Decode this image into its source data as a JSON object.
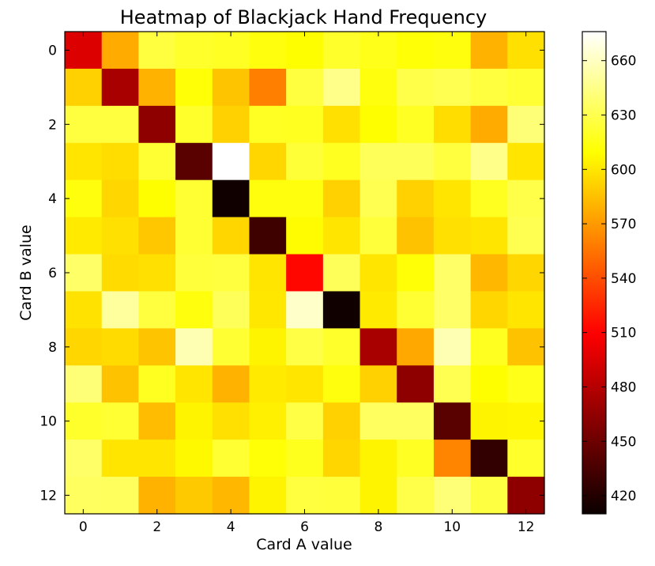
{
  "chart_data": {
    "type": "heatmap",
    "title": "Heatmap of Blackjack Hand Frequency",
    "xlabel": "Card A value",
    "ylabel": "Card B value",
    "x_ticks": [
      "0",
      "2",
      "4",
      "6",
      "8",
      "10",
      "12"
    ],
    "y_ticks": [
      "0",
      "2",
      "4",
      "6",
      "8",
      "10",
      "12"
    ],
    "colorbar_ticks": [
      "420",
      "450",
      "480",
      "510",
      "540",
      "570",
      "600",
      "630",
      "660"
    ],
    "colormap": "hot",
    "value_range": [
      410,
      676
    ],
    "matrix": [
      [
        490,
        575,
        625,
        620,
        618,
        612,
        608,
        620,
        615,
        610,
        612,
        578,
        596
      ],
      [
        590,
        470,
        578,
        610,
        585,
        558,
        625,
        645,
        612,
        628,
        630,
        625,
        622
      ],
      [
        625,
        625,
        460,
        620,
        590,
        618,
        617,
        596,
        608,
        618,
        595,
        575,
        640
      ],
      [
        598,
        595,
        622,
        440,
        676,
        592,
        623,
        617,
        632,
        632,
        625,
        645,
        598
      ],
      [
        612,
        592,
        608,
        622,
        412,
        612,
        612,
        590,
        630,
        590,
        598,
        617,
        628
      ],
      [
        600,
        596,
        586,
        622,
        592,
        430,
        607,
        598,
        624,
        584,
        596,
        598,
        630
      ],
      [
        636,
        594,
        596,
        624,
        625,
        598,
        510,
        632,
        598,
        610,
        636,
        580,
        592
      ],
      [
        597,
        650,
        625,
        612,
        632,
        599,
        662,
        412,
        600,
        622,
        636,
        592,
        598
      ],
      [
        592,
        594,
        585,
        656,
        622,
        604,
        627,
        620,
        470,
        574,
        656,
        617,
        584
      ],
      [
        640,
        584,
        617,
        598,
        578,
        600,
        598,
        612,
        590,
        460,
        630,
        608,
        615
      ],
      [
        620,
        622,
        582,
        604,
        596,
        602,
        627,
        590,
        634,
        634,
        440,
        604,
        605
      ],
      [
        636,
        598,
        598,
        606,
        622,
        610,
        616,
        592,
        604,
        618,
        560,
        425,
        620
      ],
      [
        634,
        633,
        578,
        587,
        580,
        604,
        625,
        624,
        604,
        628,
        640,
        626,
        460
      ]
    ]
  }
}
